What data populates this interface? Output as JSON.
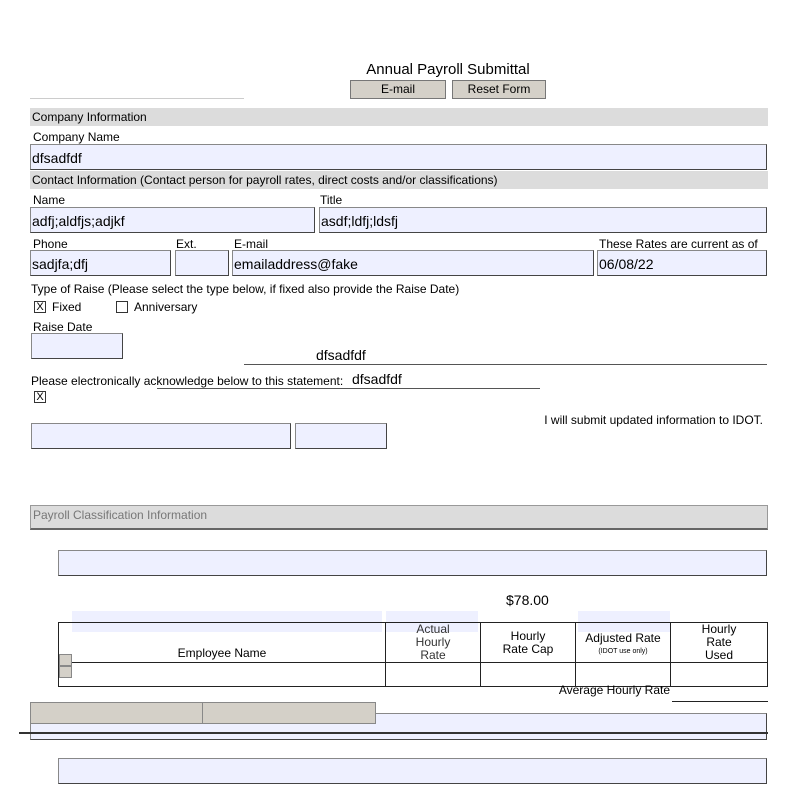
{
  "title": "Annual Payroll Submittal",
  "buttons": {
    "email": "E-mail",
    "reset": "Reset Form"
  },
  "company": {
    "section": "Company Information",
    "name_label": "Company Name",
    "name_value": "dfsadfdf"
  },
  "contact": {
    "section": "Contact Information (Contact person for payroll rates, direct costs and/or classifications)",
    "name_label": "Name",
    "name_value": "adfj;aldfjs;adjkf",
    "title_label": "Title",
    "title_value": "asdf;ldfj;ldsfj",
    "phone_label": "Phone",
    "phone_value": "sadjfa;dfj",
    "ext_label": "Ext.",
    "ext_value": "",
    "email_label": "E-mail",
    "email_value": "emailaddress@fake",
    "rates_label": "These Rates are current as of",
    "rates_value": "06/08/22"
  },
  "raise": {
    "label": "Type of Raise (Please select the type below, if fixed also provide the Raise Date)",
    "fixed_label": "Fixed",
    "fixed_checked": true,
    "anniversary_label": "Anniversary",
    "anniversary_checked": false,
    "date_label": "Raise Date",
    "date_value": ""
  },
  "ack": {
    "signature_value": "dfsadfdf",
    "overlap_value": "dfsadfdf",
    "statement": "Please electronically acknowledge below to this statement:",
    "checked": true,
    "check_mark": "X",
    "submit_text": "I will submit updated information to IDOT."
  },
  "payroll": {
    "section": "Payroll Classification Information",
    "cap_value": "$78.00",
    "headers": [
      "Employee Name",
      "Actual Hourly Rate",
      "Hourly Rate Cap",
      "Adjusted Rate",
      "Hourly Rate Used"
    ],
    "adjusted_note": "(IDOT use only)",
    "average_label": "Average Hourly Rate"
  }
}
